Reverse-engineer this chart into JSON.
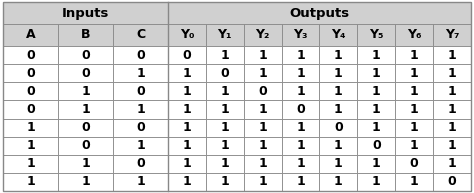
{
  "title_inputs": "Inputs",
  "title_outputs": "Outputs",
  "col_headers": [
    "A",
    "B",
    "C",
    "Y₀",
    "Y₁",
    "Y₂",
    "Y₃",
    "Y₄",
    "Y₅",
    "Y₆",
    "Y₇"
  ],
  "rows": [
    [
      0,
      0,
      0,
      0,
      1,
      1,
      1,
      1,
      1,
      1,
      1
    ],
    [
      0,
      0,
      1,
      1,
      0,
      1,
      1,
      1,
      1,
      1,
      1
    ],
    [
      0,
      1,
      0,
      1,
      1,
      0,
      1,
      1,
      1,
      1,
      1
    ],
    [
      0,
      1,
      1,
      1,
      1,
      1,
      0,
      1,
      1,
      1,
      1
    ],
    [
      1,
      0,
      0,
      1,
      1,
      1,
      1,
      0,
      1,
      1,
      1
    ],
    [
      1,
      0,
      1,
      1,
      1,
      1,
      1,
      1,
      0,
      1,
      1
    ],
    [
      1,
      1,
      0,
      1,
      1,
      1,
      1,
      1,
      1,
      0,
      1
    ],
    [
      1,
      1,
      1,
      1,
      1,
      1,
      1,
      1,
      1,
      1,
      0
    ]
  ],
  "n_input_cols": 3,
  "n_output_cols": 8,
  "header_bg": "#d0d0d0",
  "cell_bg": "#ffffff",
  "border_color": "#888888",
  "text_color": "#000000",
  "fig_width": 4.74,
  "fig_height": 1.93,
  "dpi": 100
}
